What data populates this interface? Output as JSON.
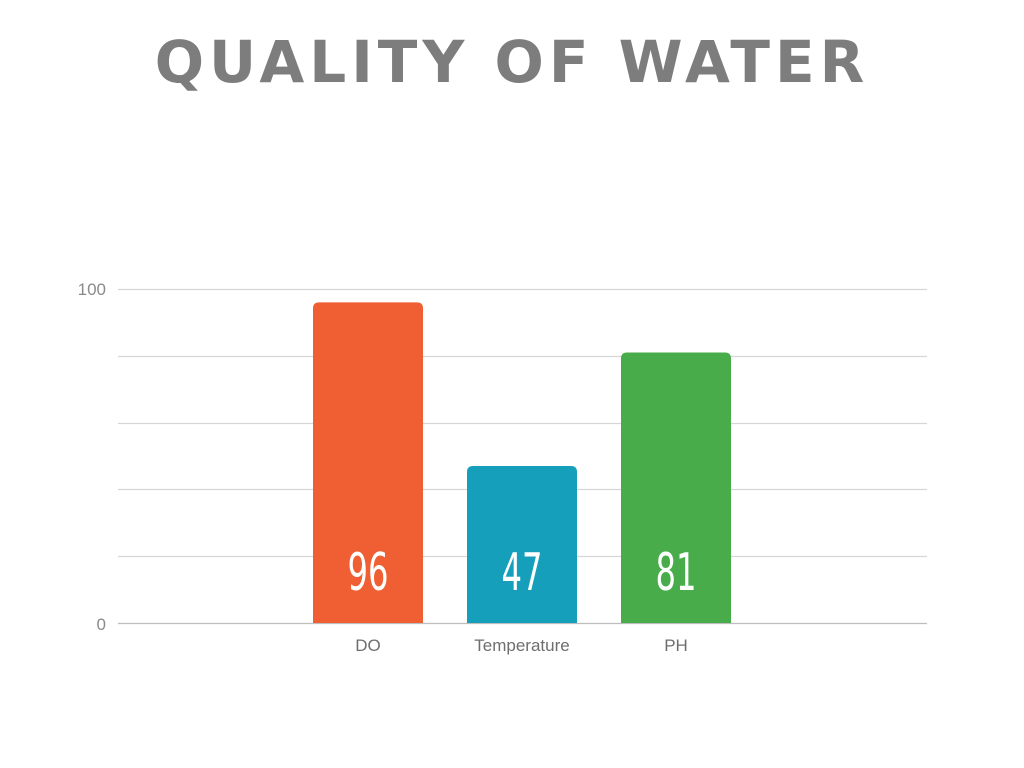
{
  "chart_data": {
    "type": "bar",
    "title": "QUALITY OF WATER",
    "categories": [
      "DO",
      "Temperature",
      "PH"
    ],
    "values": [
      96,
      47,
      81
    ],
    "colors": [
      "#f05f33",
      "#169fbb",
      "#49ac4b"
    ],
    "ylim": [
      0,
      100
    ],
    "y_tick_labels": [
      "0",
      "100"
    ],
    "y_gridline_values": [
      0,
      20,
      40,
      60,
      80,
      100
    ],
    "grid": true,
    "xlabel": "",
    "ylabel": ""
  }
}
